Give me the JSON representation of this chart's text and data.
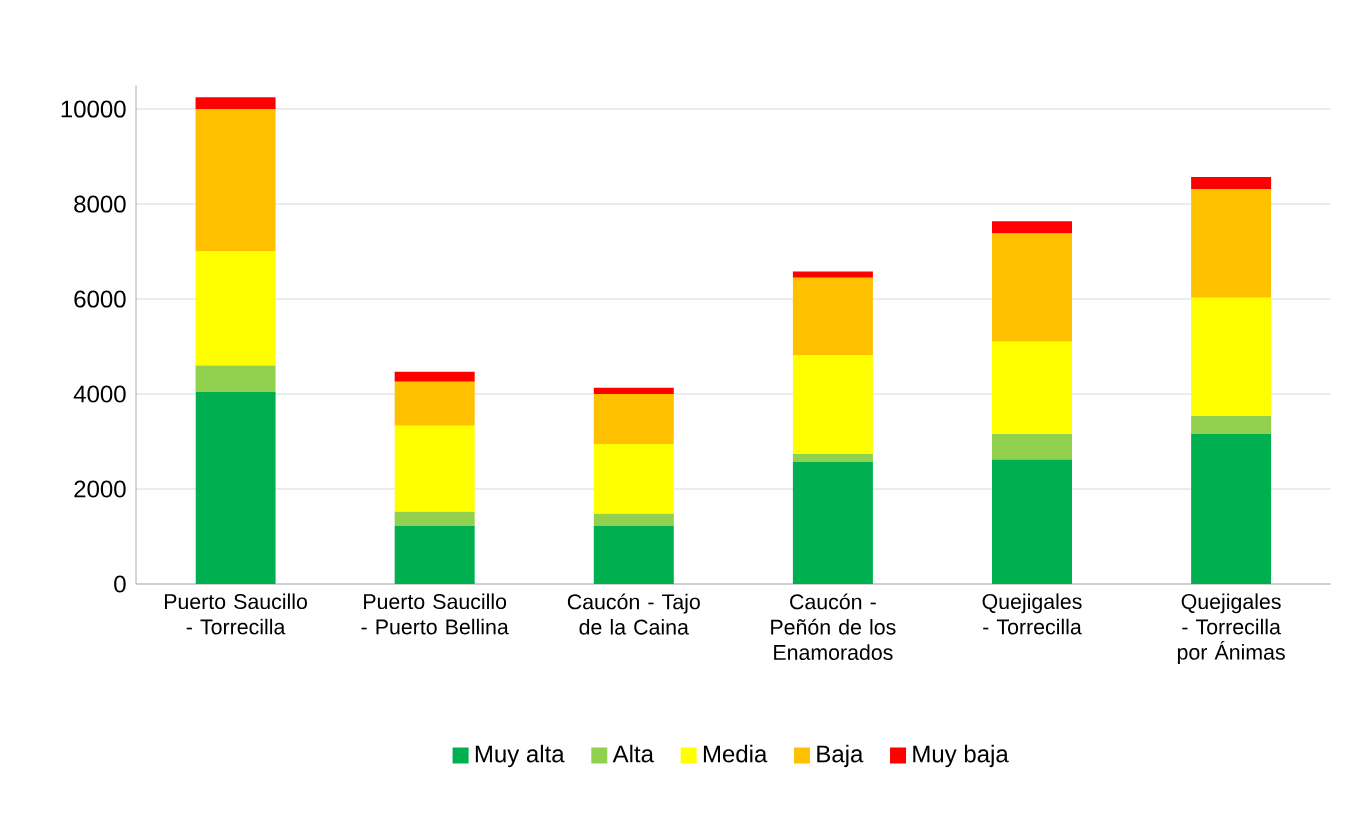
{
  "chart_data": {
    "type": "bar",
    "stacked": true,
    "categories": [
      "Puerto Saucillo - Torrecilla",
      "Puerto Saucillo - Puerto Bellina",
      "Caucón - Tajo de la Caina",
      "Caucón - Peñón de los Enamorados",
      "Quejigales - Torrecilla",
      "Quejigales - Torrecilla por Ánimas"
    ],
    "series": [
      {
        "name": "Muy alta",
        "color": "#00b050",
        "values": [
          4050,
          1220,
          1220,
          2570,
          2620,
          3160
        ]
      },
      {
        "name": "Alta",
        "color": "#92d050",
        "values": [
          550,
          300,
          260,
          170,
          540,
          380
        ]
      },
      {
        "name": "Media",
        "color": "#ffff00",
        "values": [
          2400,
          1810,
          1470,
          2070,
          1940,
          2490
        ]
      },
      {
        "name": "Baja",
        "color": "#ffc000",
        "values": [
          3000,
          930,
          1050,
          1640,
          2280,
          2280
        ]
      },
      {
        "name": "Muy baja",
        "color": "#ff0000",
        "values": [
          250,
          210,
          130,
          130,
          260,
          260
        ]
      }
    ],
    "ylim": [
      0,
      10500
    ],
    "yticks": [
      0,
      2000,
      4000,
      6000,
      8000,
      10000
    ],
    "grid": "y",
    "legend": "bottom"
  }
}
